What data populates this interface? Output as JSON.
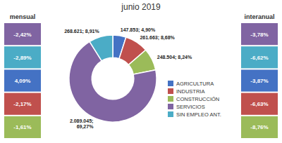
{
  "chart_data": [
    {
      "type": "pie",
      "title": "junio 2019",
      "categories": [
        "AGRICULTURA",
        "INDUSTRIA",
        "CONSTRUCCIÓN",
        "SERVICIOS",
        "SIN EMPLEO ANT."
      ],
      "values": [
        147853,
        261663,
        248504,
        2089045,
        268621
      ],
      "value_labels": [
        "147.853; 4,90%",
        "261.663; 8,68%",
        "248.504; 8,24%",
        "2.089.045;\n69,27%",
        "268.621; 8,91%"
      ],
      "colors": [
        "#4472c4",
        "#c0504d",
        "#9bbb59",
        "#8064a2",
        "#4bacc6"
      ],
      "data_labels": true,
      "legend": "right"
    },
    {
      "type": "table",
      "title": "mensual",
      "values": [
        -2.42,
        -2.89,
        4.09,
        -2.17,
        -1.61
      ],
      "value_labels": [
        "-2,42%",
        "-2,89%",
        "4,09%",
        "-2,17%",
        "-1,61%"
      ],
      "colors": [
        "#8064a2",
        "#4bacc6",
        "#4472c4",
        "#c0504d",
        "#9bbb59"
      ],
      "data_labels": true
    },
    {
      "type": "table",
      "title": "interanual",
      "values": [
        -3.78,
        -6.62,
        -3.87,
        -6.63,
        -8.76
      ],
      "value_labels": [
        "-3,78%",
        "-6,62%",
        "-3,87%",
        "-6,63%",
        "-8,76%"
      ],
      "colors": [
        "#8064a2",
        "#4bacc6",
        "#4472c4",
        "#c0504d",
        "#9bbb59"
      ],
      "data_labels": true
    }
  ]
}
